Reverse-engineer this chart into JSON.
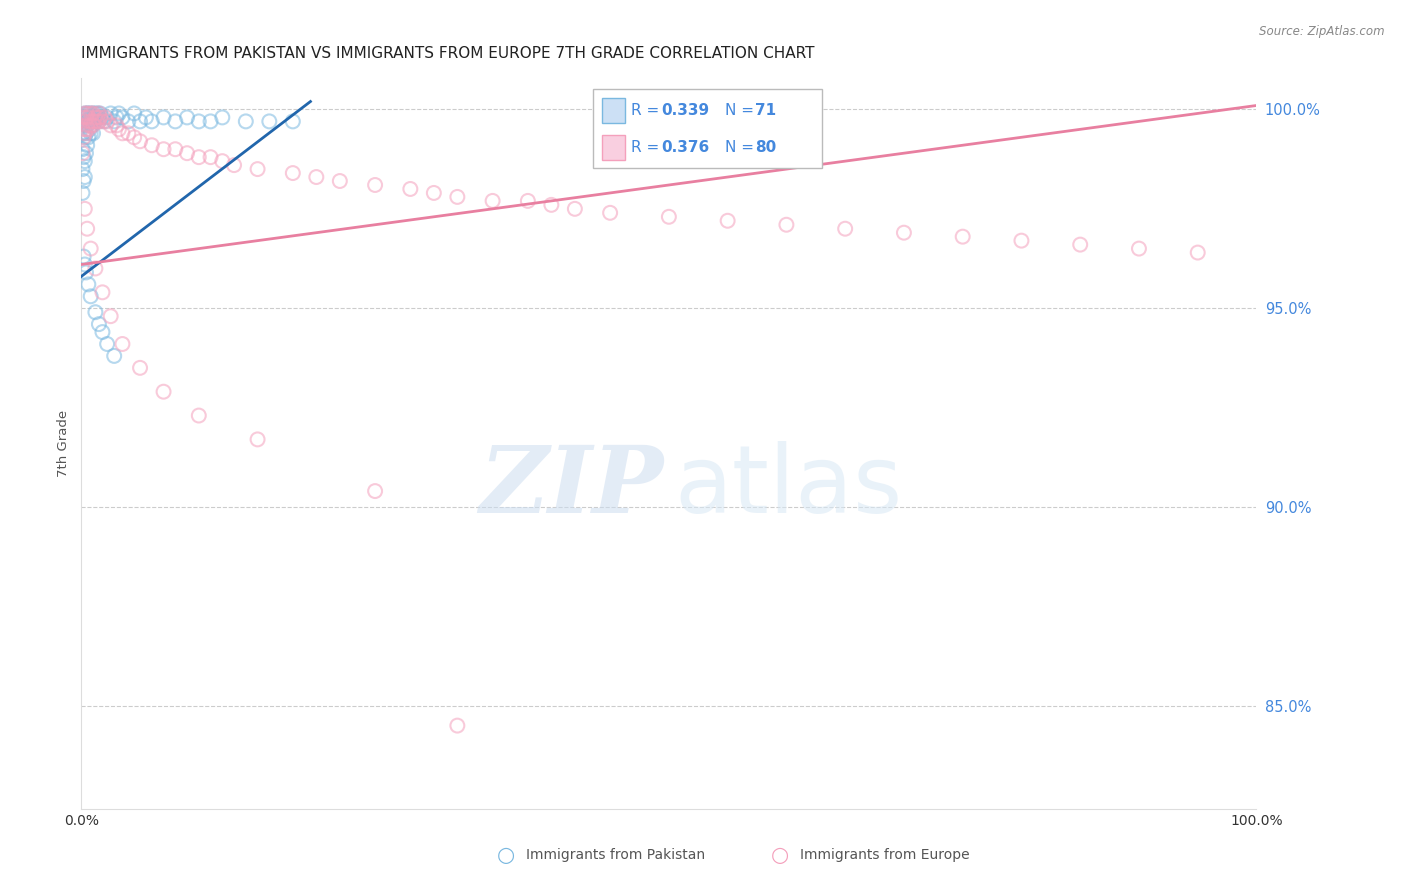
{
  "title": "IMMIGRANTS FROM PAKISTAN VS IMMIGRANTS FROM EUROPE 7TH GRADE CORRELATION CHART",
  "source": "Source: ZipAtlas.com",
  "ylabel": "7th Grade",
  "ytick_labels": [
    "85.0%",
    "90.0%",
    "95.0%",
    "100.0%"
  ],
  "ytick_values": [
    0.85,
    0.9,
    0.95,
    1.0
  ],
  "xmin": 0.0,
  "xmax": 1.0,
  "ymin": 0.824,
  "ymax": 1.008,
  "watermark_zip": "ZIP",
  "watermark_atlas": "atlas",
  "legend_r_blue": "0.339",
  "legend_n_blue": "71",
  "legend_r_pink": "0.376",
  "legend_n_pink": "80",
  "legend_label_blue": "Immigrants from Pakistan",
  "legend_label_pink": "Immigrants from Europe",
  "blue_color": "#7ab8e0",
  "pink_color": "#f4a0bc",
  "blue_line_color": "#2166ac",
  "pink_line_color": "#e87fa0",
  "grid_color": "#cccccc",
  "ytick_color": "#4488dd",
  "title_fontsize": 11,
  "scatter_size": 100,
  "scatter_alpha": 0.55,
  "scatter_linewidth": 1.5,
  "blue_line_x0": 0.0,
  "blue_line_x1": 0.195,
  "blue_line_y0": 0.958,
  "blue_line_y1": 1.002,
  "pink_line_x0": 0.0,
  "pink_line_x1": 1.0,
  "pink_line_y0": 0.961,
  "pink_line_y1": 1.001,
  "blue_x": [
    0.001,
    0.001,
    0.001,
    0.002,
    0.002,
    0.002,
    0.002,
    0.003,
    0.003,
    0.003,
    0.003,
    0.003,
    0.004,
    0.004,
    0.004,
    0.005,
    0.005,
    0.005,
    0.006,
    0.006,
    0.006,
    0.007,
    0.007,
    0.008,
    0.008,
    0.008,
    0.009,
    0.009,
    0.01,
    0.01,
    0.01,
    0.011,
    0.012,
    0.012,
    0.013,
    0.014,
    0.015,
    0.015,
    0.016,
    0.018,
    0.02,
    0.022,
    0.025,
    0.028,
    0.03,
    0.032,
    0.035,
    0.04,
    0.045,
    0.05,
    0.055,
    0.06,
    0.07,
    0.08,
    0.09,
    0.1,
    0.11,
    0.12,
    0.14,
    0.16,
    0.18,
    0.002,
    0.003,
    0.004,
    0.006,
    0.008,
    0.012,
    0.015,
    0.018,
    0.022,
    0.028
  ],
  "blue_y": [
    0.99,
    0.985,
    0.979,
    0.998,
    0.994,
    0.988,
    0.982,
    0.999,
    0.997,
    0.993,
    0.987,
    0.983,
    0.998,
    0.994,
    0.989,
    0.999,
    0.996,
    0.991,
    0.999,
    0.997,
    0.993,
    0.998,
    0.995,
    0.999,
    0.997,
    0.994,
    0.998,
    0.996,
    0.999,
    0.997,
    0.994,
    0.998,
    0.999,
    0.997,
    0.998,
    0.999,
    0.998,
    0.997,
    0.999,
    0.998,
    0.997,
    0.998,
    0.999,
    0.997,
    0.998,
    0.999,
    0.998,
    0.997,
    0.999,
    0.997,
    0.998,
    0.997,
    0.998,
    0.997,
    0.998,
    0.997,
    0.997,
    0.998,
    0.997,
    0.997,
    0.997,
    0.963,
    0.961,
    0.959,
    0.956,
    0.953,
    0.949,
    0.946,
    0.944,
    0.941,
    0.938
  ],
  "pink_x": [
    0.001,
    0.001,
    0.002,
    0.002,
    0.003,
    0.003,
    0.003,
    0.004,
    0.004,
    0.005,
    0.005,
    0.006,
    0.006,
    0.007,
    0.008,
    0.008,
    0.009,
    0.01,
    0.01,
    0.011,
    0.012,
    0.013,
    0.014,
    0.015,
    0.015,
    0.016,
    0.018,
    0.02,
    0.022,
    0.025,
    0.03,
    0.032,
    0.035,
    0.04,
    0.045,
    0.05,
    0.06,
    0.07,
    0.08,
    0.09,
    0.1,
    0.11,
    0.12,
    0.13,
    0.15,
    0.18,
    0.2,
    0.22,
    0.25,
    0.28,
    0.3,
    0.32,
    0.35,
    0.38,
    0.4,
    0.42,
    0.45,
    0.5,
    0.55,
    0.6,
    0.65,
    0.7,
    0.75,
    0.8,
    0.85,
    0.9,
    0.95,
    0.003,
    0.005,
    0.008,
    0.012,
    0.018,
    0.025,
    0.035,
    0.05,
    0.07,
    0.1,
    0.15,
    0.25,
    0.32
  ],
  "pink_y": [
    0.995,
    0.989,
    0.998,
    0.993,
    0.999,
    0.997,
    0.994,
    0.998,
    0.995,
    0.999,
    0.996,
    0.998,
    0.995,
    0.997,
    0.999,
    0.996,
    0.997,
    0.999,
    0.996,
    0.997,
    0.998,
    0.997,
    0.998,
    0.999,
    0.997,
    0.998,
    0.997,
    0.998,
    0.997,
    0.996,
    0.996,
    0.995,
    0.994,
    0.994,
    0.993,
    0.992,
    0.991,
    0.99,
    0.99,
    0.989,
    0.988,
    0.988,
    0.987,
    0.986,
    0.985,
    0.984,
    0.983,
    0.982,
    0.981,
    0.98,
    0.979,
    0.978,
    0.977,
    0.977,
    0.976,
    0.975,
    0.974,
    0.973,
    0.972,
    0.971,
    0.97,
    0.969,
    0.968,
    0.967,
    0.966,
    0.965,
    0.964,
    0.975,
    0.97,
    0.965,
    0.96,
    0.954,
    0.948,
    0.941,
    0.935,
    0.929,
    0.923,
    0.917,
    0.904,
    0.845
  ]
}
